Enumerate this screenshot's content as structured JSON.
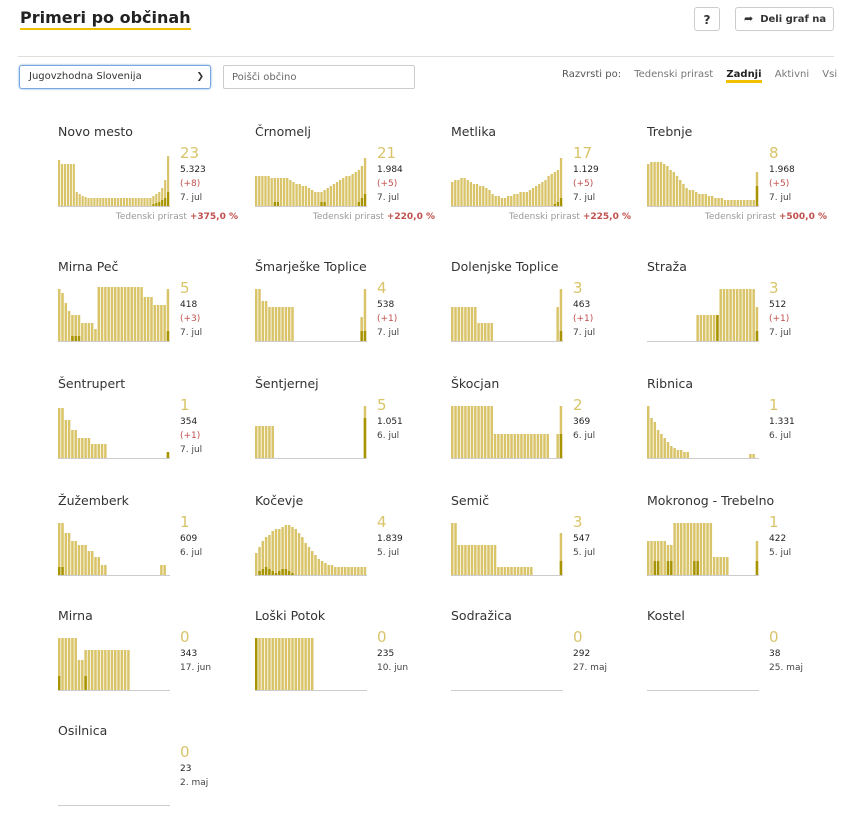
{
  "header": {
    "title": "Primeri po občinah",
    "help_label": "?",
    "share_label": "Deli graf na"
  },
  "filters": {
    "region_value": "Jugovzhodna Slovenija",
    "search_placeholder": "Poišči občino"
  },
  "sort": {
    "label": "Razvrsti po:",
    "options": [
      "Tedenski prirast",
      "Zadnji",
      "Aktivni",
      "Vsi"
    ],
    "active": "Zadnji"
  },
  "colors": {
    "accent": "#f0c000",
    "bar": "#d9c46a",
    "bar_dark": "#a89400",
    "negative": "#c0504d"
  },
  "municipalities": [
    {
      "name": "Novo mesto",
      "active": "23",
      "total": "5.323",
      "change": "(+8)",
      "date": "7. jul",
      "weekly_label": "Tedenski prirast",
      "weekly": "+375,0 %",
      "bars": [
        46,
        42,
        42,
        42,
        42,
        42,
        14,
        12,
        10,
        9,
        8,
        8,
        8,
        8,
        8,
        8,
        8,
        8,
        8,
        8,
        8,
        8,
        8,
        8,
        8,
        8,
        8,
        8,
        8,
        8,
        8,
        8,
        10,
        12,
        14,
        18,
        26,
        50
      ],
      "dark": [
        0,
        0,
        0,
        0,
        0,
        0,
        0,
        0,
        0,
        0,
        0,
        0,
        0,
        0,
        0,
        0,
        0,
        0,
        0,
        0,
        0,
        0,
        0,
        0,
        0,
        0,
        0,
        0,
        0,
        0,
        0,
        0,
        2,
        3,
        4,
        6,
        8,
        14
      ]
    },
    {
      "name": "Črnomelj",
      "active": "21",
      "total": "1.984",
      "change": "(+5)",
      "date": "7. jul",
      "weekly_label": "Tedenski prirast",
      "weekly": "+220,0 %",
      "bars": [
        30,
        30,
        30,
        30,
        30,
        28,
        28,
        28,
        28,
        28,
        28,
        26,
        24,
        22,
        22,
        20,
        20,
        18,
        16,
        14,
        14,
        14,
        16,
        18,
        20,
        22,
        24,
        26,
        28,
        30,
        30,
        32,
        34,
        36,
        40,
        48
      ],
      "dark": [
        0,
        0,
        0,
        0,
        0,
        0,
        4,
        4,
        0,
        0,
        0,
        0,
        0,
        0,
        0,
        0,
        0,
        0,
        0,
        0,
        0,
        4,
        4,
        0,
        0,
        0,
        0,
        0,
        0,
        0,
        0,
        0,
        0,
        4,
        8,
        12
      ]
    },
    {
      "name": "Metlika",
      "active": "17",
      "total": "1.129",
      "change": "(+5)",
      "date": "7. jul",
      "weekly_label": "Tedenski prirast",
      "weekly": "+225,0 %",
      "bars": [
        24,
        26,
        26,
        28,
        28,
        26,
        24,
        22,
        22,
        20,
        20,
        18,
        16,
        12,
        10,
        10,
        8,
        8,
        10,
        10,
        12,
        12,
        14,
        14,
        14,
        16,
        18,
        20,
        22,
        24,
        26,
        30,
        32,
        34,
        36,
        48
      ],
      "dark": [
        0,
        0,
        0,
        0,
        0,
        0,
        0,
        0,
        0,
        0,
        0,
        0,
        0,
        0,
        0,
        0,
        0,
        0,
        0,
        0,
        0,
        0,
        0,
        0,
        0,
        0,
        0,
        0,
        0,
        0,
        0,
        0,
        0,
        2,
        4,
        8
      ]
    },
    {
      "name": "Trebnje",
      "active": "8",
      "total": "1.968",
      "change": "(+5)",
      "date": "7. jul",
      "weekly_label": "Tedenski prirast",
      "weekly": "+500,0 %",
      "bars": [
        42,
        44,
        44,
        44,
        44,
        42,
        40,
        36,
        34,
        30,
        26,
        22,
        18,
        16,
        16,
        14,
        12,
        12,
        12,
        10,
        10,
        8,
        8,
        8,
        6,
        6,
        6,
        6,
        6,
        6,
        6,
        6,
        6,
        6,
        34
      ],
      "dark": [
        0,
        0,
        0,
        0,
        0,
        0,
        0,
        0,
        0,
        0,
        0,
        0,
        0,
        0,
        0,
        0,
        0,
        0,
        0,
        0,
        0,
        0,
        0,
        0,
        0,
        0,
        0,
        0,
        0,
        0,
        0,
        0,
        0,
        0,
        20
      ]
    },
    {
      "name": "Mirna Peč",
      "active": "5",
      "total": "418",
      "change": "(+3)",
      "date": "7. jul",
      "bars": [
        52,
        48,
        38,
        30,
        26,
        26,
        26,
        18,
        18,
        18,
        18,
        12,
        54,
        54,
        54,
        54,
        54,
        54,
        54,
        54,
        54,
        54,
        54,
        54,
        54,
        54,
        44,
        44,
        44,
        36,
        36,
        36,
        36,
        52
      ],
      "dark": [
        0,
        0,
        0,
        0,
        5,
        5,
        5,
        0,
        0,
        0,
        0,
        0,
        0,
        0,
        0,
        0,
        0,
        0,
        0,
        0,
        0,
        0,
        0,
        0,
        0,
        0,
        0,
        0,
        0,
        0,
        0,
        0,
        0,
        10
      ]
    },
    {
      "name": "Šmarješke Toplice",
      "active": "4",
      "total": "538",
      "change": "(+1)",
      "date": "7. jul",
      "bars": [
        52,
        52,
        40,
        40,
        34,
        34,
        34,
        34,
        34,
        34,
        34,
        34,
        0,
        0,
        0,
        0,
        0,
        0,
        0,
        0,
        0,
        0,
        0,
        0,
        0,
        0,
        0,
        0,
        0,
        0,
        0,
        0,
        24,
        52
      ],
      "dark": [
        0,
        0,
        0,
        0,
        0,
        0,
        0,
        0,
        0,
        0,
        0,
        0,
        0,
        0,
        0,
        0,
        0,
        0,
        0,
        0,
        0,
        0,
        0,
        0,
        0,
        0,
        0,
        0,
        0,
        0,
        0,
        0,
        10,
        10
      ]
    },
    {
      "name": "Dolenjske Toplice",
      "active": "3",
      "total": "463",
      "change": "(+1)",
      "date": "7. jul",
      "bars": [
        34,
        34,
        34,
        34,
        34,
        34,
        34,
        34,
        18,
        18,
        18,
        18,
        18,
        0,
        0,
        0,
        0,
        0,
        0,
        0,
        0,
        0,
        0,
        0,
        0,
        0,
        0,
        0,
        0,
        0,
        0,
        0,
        34,
        52
      ],
      "dark": [
        0,
        0,
        0,
        0,
        0,
        0,
        0,
        0,
        0,
        0,
        0,
        0,
        0,
        0,
        0,
        0,
        0,
        0,
        0,
        0,
        0,
        0,
        0,
        0,
        0,
        0,
        0,
        0,
        0,
        0,
        0,
        0,
        0,
        10
      ]
    },
    {
      "name": "Straža",
      "active": "3",
      "total": "512",
      "change": "(+1)",
      "date": "7. jul",
      "bars": [
        0,
        0,
        0,
        0,
        0,
        0,
        0,
        0,
        0,
        0,
        0,
        0,
        0,
        0,
        0,
        26,
        26,
        26,
        26,
        26,
        26,
        26,
        52,
        52,
        52,
        52,
        52,
        52,
        52,
        52,
        52,
        52,
        52,
        34
      ],
      "dark": [
        0,
        0,
        0,
        0,
        0,
        0,
        0,
        0,
        0,
        0,
        0,
        0,
        0,
        0,
        0,
        0,
        0,
        0,
        0,
        0,
        0,
        26,
        0,
        0,
        0,
        0,
        0,
        0,
        0,
        0,
        0,
        0,
        0,
        10
      ]
    },
    {
      "name": "Šentrupert",
      "active": "1",
      "total": "354",
      "change": "(+1)",
      "date": "7. jul",
      "bars": [
        50,
        50,
        38,
        38,
        28,
        28,
        20,
        20,
        20,
        20,
        14,
        14,
        14,
        14,
        14,
        0,
        0,
        0,
        0,
        0,
        0,
        0,
        0,
        0,
        0,
        0,
        0,
        0,
        0,
        0,
        0,
        0,
        0,
        6
      ],
      "dark": [
        0,
        0,
        0,
        0,
        0,
        0,
        0,
        0,
        0,
        0,
        0,
        0,
        0,
        0,
        0,
        0,
        0,
        0,
        0,
        0,
        0,
        0,
        0,
        0,
        0,
        0,
        0,
        0,
        0,
        0,
        0,
        0,
        0,
        6
      ]
    },
    {
      "name": "Šentjernej",
      "active": "5",
      "total": "1.051",
      "date": "6. jul",
      "bars": [
        32,
        32,
        32,
        32,
        32,
        32,
        0,
        0,
        0,
        0,
        0,
        0,
        0,
        0,
        0,
        0,
        0,
        0,
        0,
        0,
        0,
        0,
        0,
        0,
        0,
        0,
        0,
        0,
        0,
        0,
        0,
        0,
        0,
        52
      ],
      "dark": [
        0,
        0,
        0,
        0,
        0,
        0,
        0,
        0,
        0,
        0,
        0,
        0,
        0,
        0,
        0,
        0,
        0,
        0,
        0,
        0,
        0,
        0,
        0,
        0,
        0,
        0,
        0,
        0,
        0,
        0,
        0,
        0,
        0,
        40
      ]
    },
    {
      "name": "Škocjan",
      "active": "2",
      "total": "369",
      "date": "6. jul",
      "bars": [
        52,
        52,
        52,
        52,
        52,
        52,
        52,
        52,
        52,
        52,
        52,
        52,
        52,
        24,
        24,
        24,
        24,
        24,
        24,
        24,
        24,
        24,
        24,
        24,
        24,
        24,
        24,
        24,
        24,
        24,
        0,
        0,
        24,
        52
      ],
      "dark": [
        0,
        0,
        0,
        0,
        0,
        0,
        0,
        0,
        0,
        0,
        0,
        0,
        0,
        0,
        0,
        0,
        0,
        0,
        0,
        0,
        0,
        0,
        0,
        0,
        0,
        0,
        0,
        0,
        0,
        0,
        0,
        0,
        0,
        24
      ]
    },
    {
      "name": "Ribnica",
      "active": "1",
      "total": "1.331",
      "date": "6. jul",
      "bars": [
        52,
        40,
        36,
        28,
        24,
        20,
        16,
        12,
        10,
        8,
        8,
        6,
        6,
        0,
        0,
        0,
        0,
        0,
        0,
        0,
        0,
        0,
        0,
        0,
        0,
        0,
        0,
        0,
        0,
        0,
        0,
        4,
        4,
        0
      ],
      "dark": [
        0,
        0,
        0,
        0,
        0,
        0,
        0,
        0,
        0,
        0,
        0,
        0,
        0,
        0,
        0,
        0,
        0,
        0,
        0,
        0,
        0,
        0,
        0,
        0,
        0,
        0,
        0,
        0,
        0,
        0,
        0,
        0,
        0,
        0
      ]
    },
    {
      "name": "Žužemberk",
      "active": "1",
      "total": "609",
      "date": "6. jul",
      "bars": [
        52,
        52,
        42,
        42,
        34,
        34,
        30,
        30,
        30,
        24,
        24,
        18,
        18,
        10,
        10,
        0,
        0,
        0,
        0,
        0,
        0,
        0,
        0,
        0,
        0,
        0,
        0,
        0,
        0,
        0,
        0,
        10,
        10,
        0
      ],
      "dark": [
        8,
        8,
        0,
        0,
        0,
        0,
        0,
        0,
        0,
        0,
        0,
        0,
        0,
        0,
        0,
        0,
        0,
        0,
        0,
        0,
        0,
        0,
        0,
        0,
        0,
        0,
        0,
        0,
        0,
        0,
        0,
        0,
        0,
        0
      ]
    },
    {
      "name": "Kočevje",
      "active": "4",
      "total": "1.839",
      "date": "5. jul",
      "bars": [
        22,
        28,
        34,
        38,
        40,
        44,
        46,
        46,
        48,
        50,
        50,
        48,
        46,
        42,
        38,
        32,
        28,
        24,
        20,
        16,
        14,
        12,
        10,
        10,
        8,
        8,
        8,
        8,
        8,
        8,
        8,
        8,
        8,
        8
      ],
      "dark": [
        0,
        4,
        6,
        8,
        6,
        4,
        2,
        4,
        6,
        6,
        4,
        2,
        0,
        0,
        0,
        0,
        0,
        0,
        0,
        0,
        0,
        0,
        0,
        0,
        0,
        0,
        0,
        0,
        0,
        0,
        0,
        0,
        0,
        0
      ]
    },
    {
      "name": "Semič",
      "active": "3",
      "total": "547",
      "date": "5. jul",
      "bars": [
        52,
        52,
        30,
        30,
        30,
        30,
        30,
        30,
        30,
        30,
        30,
        30,
        30,
        30,
        8,
        8,
        8,
        8,
        8,
        8,
        8,
        8,
        8,
        8,
        8,
        0,
        0,
        0,
        0,
        0,
        0,
        0,
        0,
        42
      ],
      "dark": [
        0,
        0,
        0,
        0,
        0,
        0,
        0,
        0,
        0,
        0,
        0,
        0,
        0,
        0,
        0,
        0,
        0,
        0,
        0,
        0,
        0,
        0,
        0,
        0,
        0,
        0,
        0,
        0,
        0,
        0,
        0,
        0,
        0,
        14
      ]
    },
    {
      "name": "Mokronog - Trebelno",
      "active": "1",
      "total": "422",
      "date": "5. jul",
      "bars": [
        34,
        34,
        34,
        34,
        34,
        34,
        30,
        30,
        52,
        52,
        52,
        52,
        52,
        52,
        52,
        52,
        52,
        52,
        52,
        52,
        18,
        18,
        18,
        18,
        18,
        0,
        0,
        0,
        0,
        0,
        0,
        0,
        0,
        34
      ],
      "dark": [
        0,
        0,
        14,
        14,
        0,
        0,
        14,
        14,
        0,
        0,
        0,
        0,
        0,
        0,
        14,
        14,
        0,
        0,
        0,
        0,
        0,
        0,
        0,
        0,
        0,
        0,
        0,
        0,
        0,
        0,
        0,
        0,
        0,
        14
      ]
    },
    {
      "name": "Mirna",
      "active": "0",
      "total": "343",
      "date": "17. jun",
      "bars": [
        52,
        52,
        52,
        52,
        52,
        52,
        30,
        30,
        40,
        40,
        40,
        40,
        40,
        40,
        40,
        40,
        40,
        40,
        40,
        40,
        40,
        40,
        0,
        0,
        0,
        0,
        0,
        0,
        0,
        0,
        0,
        0,
        0,
        0
      ],
      "dark": [
        14,
        0,
        0,
        0,
        0,
        0,
        0,
        0,
        14,
        0,
        0,
        0,
        0,
        0,
        0,
        0,
        0,
        0,
        0,
        0,
        0,
        0,
        0,
        0,
        0,
        0,
        0,
        0,
        0,
        0,
        0,
        0,
        0,
        0
      ]
    },
    {
      "name": "Loški Potok",
      "active": "0",
      "total": "235",
      "date": "10. jun",
      "bars": [
        52,
        52,
        52,
        52,
        52,
        52,
        52,
        52,
        52,
        52,
        52,
        52,
        52,
        52,
        52,
        52,
        52,
        52,
        0,
        0,
        0,
        0,
        0,
        0,
        0,
        0,
        0,
        0,
        0,
        0,
        0,
        0,
        0,
        0
      ],
      "dark": [
        52,
        0,
        0,
        0,
        0,
        0,
        0,
        0,
        0,
        0,
        0,
        0,
        0,
        0,
        0,
        0,
        0,
        0,
        0,
        0,
        0,
        0,
        0,
        0,
        0,
        0,
        0,
        0,
        0,
        0,
        0,
        0,
        0,
        0
      ]
    },
    {
      "name": "Sodražica",
      "active": "0",
      "total": "292",
      "date": "27. maj",
      "bars": [],
      "dark": []
    },
    {
      "name": "Kostel",
      "active": "0",
      "total": "38",
      "date": "25. maj",
      "bars": [],
      "dark": []
    },
    {
      "name": "Osilnica",
      "active": "0",
      "total": "23",
      "date": "2. maj",
      "bars": [],
      "dark": []
    }
  ]
}
